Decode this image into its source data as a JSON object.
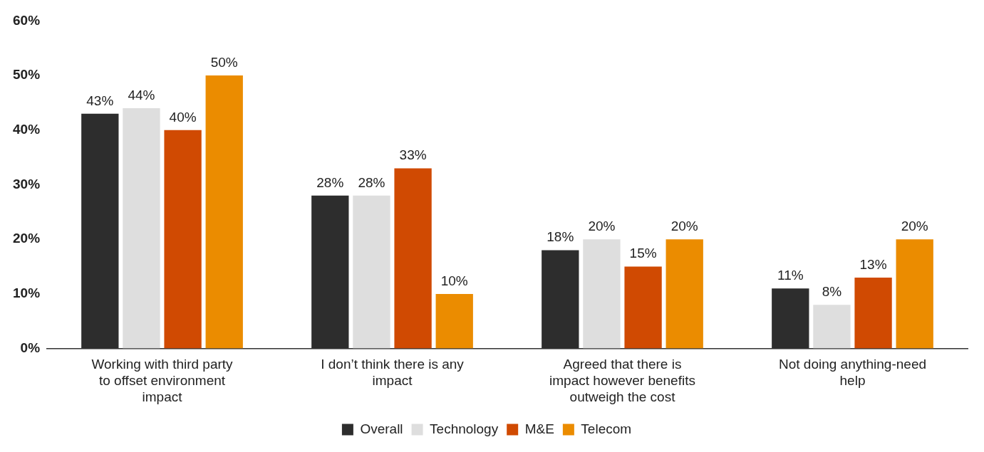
{
  "chart_data": {
    "type": "bar",
    "categories": [
      "Working with third party to offset environment impact",
      "I don’t think there is any impact",
      "Agreed that there is impact however benefits outweigh the cost",
      "Not doing anything-need help"
    ],
    "series": [
      {
        "name": "Overall",
        "color": "#2d2d2d",
        "values": [
          43,
          28,
          18,
          11
        ],
        "value_labels": [
          "43%",
          "28%",
          "18%",
          "11%"
        ]
      },
      {
        "name": "Technology",
        "color": "#dedede",
        "values": [
          44,
          28,
          20,
          8
        ],
        "value_labels": [
          "44%",
          "28%",
          "20%",
          "8%"
        ]
      },
      {
        "name": "M&E",
        "color": "#d04a02",
        "values": [
          40,
          33,
          15,
          13
        ],
        "value_labels": [
          "40%",
          "33%",
          "15%",
          "13%"
        ]
      },
      {
        "name": "Telecom",
        "color": "#eb8c00",
        "values": [
          50,
          10,
          20,
          20
        ],
        "value_labels": [
          "50%",
          "10%",
          "20%",
          "20%"
        ]
      }
    ],
    "ylim": [
      0,
      60
    ],
    "yticks": [
      {
        "value": 0,
        "label": "0%"
      },
      {
        "value": 10,
        "label": "10%"
      },
      {
        "value": 20,
        "label": "20%"
      },
      {
        "value": 30,
        "label": "30%"
      },
      {
        "value": 40,
        "label": "40%"
      },
      {
        "value": 50,
        "label": "50%"
      },
      {
        "value": 60,
        "label": "60%"
      }
    ],
    "grid": false,
    "legend": "bottom"
  }
}
